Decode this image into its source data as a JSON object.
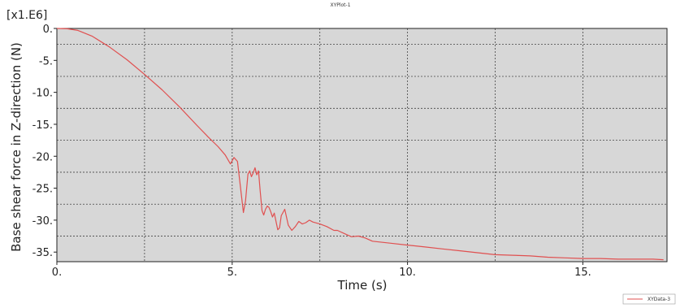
{
  "chart_data": {
    "type": "line",
    "title": "XYPlot-1",
    "xlabel": "Time (s)",
    "ylabel": "Base shear force in Z-direction (N)",
    "y_multiplier": "[x1.E6]",
    "xlim": [
      0,
      17.4
    ],
    "ylim": [
      -36.5,
      0
    ],
    "x_ticks": [
      {
        "value": 0,
        "label": "0."
      },
      {
        "value": 5,
        "label": "5."
      },
      {
        "value": 10,
        "label": "10."
      },
      {
        "value": 15,
        "label": "15."
      }
    ],
    "y_ticks": [
      {
        "value": 0,
        "label": "0."
      },
      {
        "value": -5,
        "label": "-5."
      },
      {
        "value": -10,
        "label": "-10."
      },
      {
        "value": -15,
        "label": "-15."
      },
      {
        "value": -20,
        "label": "-20."
      },
      {
        "value": -25,
        "label": "-25."
      },
      {
        "value": -30,
        "label": "-30."
      },
      {
        "value": -35,
        "label": "-35."
      }
    ],
    "x_gridlines": [
      2.5,
      5,
      7.5,
      10,
      12.5,
      15
    ],
    "y_gridlines": [
      -2.5,
      -7.5,
      -12.5,
      -17.5,
      -22.5,
      -27.5,
      -32.5
    ],
    "grid": true,
    "legend_position": "bottom-right",
    "series": [
      {
        "name": "XYData-3",
        "color": "#e05050",
        "x": [
          0,
          0.3,
          0.6,
          1.0,
          1.5,
          2.0,
          2.5,
          3.0,
          3.5,
          4.0,
          4.3,
          4.6,
          4.8,
          4.95,
          5.0,
          5.05,
          5.15,
          5.25,
          5.32,
          5.38,
          5.45,
          5.5,
          5.55,
          5.6,
          5.65,
          5.7,
          5.75,
          5.8,
          5.85,
          5.9,
          5.95,
          6.0,
          6.05,
          6.1,
          6.15,
          6.2,
          6.3,
          6.35,
          6.4,
          6.5,
          6.6,
          6.7,
          6.8,
          6.9,
          7.0,
          7.1,
          7.2,
          7.3,
          7.5,
          7.7,
          7.9,
          8.0,
          8.2,
          8.4,
          8.6,
          8.8,
          9.0,
          9.5,
          10.0,
          10.5,
          11.0,
          11.5,
          12.0,
          12.5,
          13.0,
          13.5,
          14.0,
          14.5,
          15.0,
          15.5,
          16.0,
          16.5,
          17.0,
          17.3
        ],
        "y": [
          0,
          -0.05,
          -0.3,
          -1.2,
          -2.9,
          -4.9,
          -7.2,
          -9.6,
          -12.3,
          -15.2,
          -16.9,
          -18.5,
          -19.8,
          -21.2,
          -20.7,
          -20.2,
          -20.8,
          -25.5,
          -28.8,
          -27.0,
          -22.8,
          -22.3,
          -23.2,
          -22.6,
          -21.8,
          -22.9,
          -22.3,
          -25.5,
          -28.5,
          -29.2,
          -28.3,
          -27.8,
          -28.0,
          -28.7,
          -29.5,
          -28.9,
          -31.5,
          -31.2,
          -29.3,
          -28.3,
          -30.8,
          -31.6,
          -31.0,
          -30.2,
          -30.6,
          -30.4,
          -30.0,
          -30.3,
          -30.6,
          -31.0,
          -31.6,
          -31.6,
          -32.1,
          -32.6,
          -32.5,
          -32.8,
          -33.3,
          -33.6,
          -33.9,
          -34.2,
          -34.5,
          -34.8,
          -35.1,
          -35.4,
          -35.5,
          -35.6,
          -35.8,
          -35.9,
          -36.0,
          -36.0,
          -36.1,
          -36.1,
          -36.1,
          -36.2
        ]
      }
    ]
  }
}
